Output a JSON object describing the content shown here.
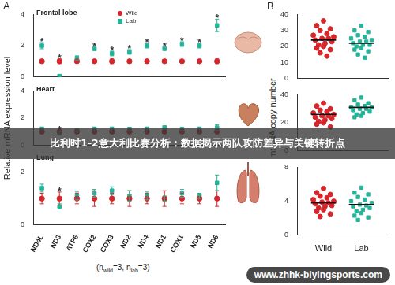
{
  "figure": {
    "panel_labels": [
      "A",
      "B"
    ],
    "ylabels": [
      "Relative mRNA expression level",
      "mtDNA copy number"
    ],
    "note": [
      {
        "text": "(n"
      },
      {
        "text": "wild",
        "sub": true
      },
      {
        "text": "=3, n"
      },
      {
        "text": "lab",
        "sub": true
      },
      {
        "text": "=3)"
      }
    ],
    "banner": "比利时1-2意大利比赛分析：数据揭示两队攻防差异与关键转折点",
    "watermark": "www.zhhk-biyingsports.com"
  },
  "chart_data": [
    {
      "type": "dot",
      "title": "Frontal lobe",
      "legend": "top",
      "grid": false,
      "tick_labels": "y",
      "categories": [
        "ND4L",
        "ND3",
        "ATP6",
        "COX2",
        "COX3",
        "ND2",
        "ND4",
        "ND1",
        "COX1",
        "ND5",
        "ND6"
      ],
      "ylim": [
        0,
        4
      ],
      "yticks": [
        0,
        2,
        4
      ],
      "series": [
        {
          "name": "Wild",
          "color": "#d7262b",
          "marker": "circle",
          "values": [
            1,
            1,
            1,
            1,
            1,
            1,
            1,
            1,
            1,
            1,
            1
          ],
          "errors": [
            0.1,
            0.15,
            0.1,
            0.1,
            0.15,
            0.1,
            0.1,
            0.1,
            0.1,
            0.1,
            0.15
          ]
        },
        {
          "name": "Lab",
          "color": "#23b49a",
          "marker": "square",
          "values": [
            2.0,
            0.05,
            1.2,
            1.8,
            1.5,
            1.6,
            2.0,
            1.8,
            2.1,
            2.0,
            3.3
          ],
          "errors": [
            0.2,
            0.05,
            0.15,
            0.1,
            0.15,
            0.15,
            0.15,
            0.1,
            0.15,
            0.15,
            0.4
          ]
        }
      ],
      "annotations": [
        {
          "text": "*",
          "category": "ND4L"
        },
        {
          "text": "*",
          "category": "ND3"
        },
        {
          "text": "*",
          "category": "COX2"
        },
        {
          "text": "*",
          "category": "COX3"
        },
        {
          "text": "*",
          "category": "ND2"
        },
        {
          "text": "*",
          "category": "ND4"
        },
        {
          "text": "*",
          "category": "ND1"
        },
        {
          "text": "*",
          "category": "COX1"
        },
        {
          "text": "*",
          "category": "ND5"
        },
        {
          "text": "*",
          "category": "ND6"
        }
      ]
    },
    {
      "type": "dot",
      "title": "Heart",
      "grid": false,
      "tick_labels": "y",
      "categories": [
        "ND4L",
        "ND3",
        "ATP6",
        "COX2",
        "COX3",
        "ND2",
        "ND4",
        "ND1",
        "COX1",
        "ND5",
        "ND6"
      ],
      "ylim": [
        0,
        4
      ],
      "yticks": [
        0,
        2,
        4
      ],
      "series": [
        {
          "name": "Wild",
          "color": "#d7262b",
          "marker": "circle",
          "values": [
            1,
            1,
            1,
            1,
            1,
            1,
            1,
            1,
            1,
            1,
            1
          ],
          "errors": [
            0.1,
            0.1,
            0.1,
            0.1,
            0.1,
            0.1,
            0.1,
            0.1,
            0.1,
            0.1,
            0.1
          ]
        },
        {
          "name": "Lab",
          "color": "#23b49a",
          "marker": "square",
          "values": [
            1.2,
            0.9,
            1.1,
            1.2,
            1.2,
            1.2,
            1.2,
            1.3,
            1.2,
            1.2,
            1.3
          ],
          "errors": [
            0.15,
            0.1,
            0.1,
            0.15,
            0.15,
            0.1,
            0.15,
            0.15,
            0.1,
            0.15,
            0.2
          ]
        }
      ],
      "annotations": [
        {
          "text": "*",
          "category": "ND3"
        }
      ]
    },
    {
      "type": "dot",
      "title": "Lung",
      "grid": false,
      "categories": [
        "ND4L",
        "ND3",
        "ATP6",
        "COX2",
        "COX3",
        "ND2",
        "ND4",
        "ND1",
        "COX1",
        "ND5",
        "ND6"
      ],
      "ylim": [
        0,
        2.5
      ],
      "yticks": [
        0,
        2
      ],
      "series": [
        {
          "name": "Wild",
          "color": "#d7262b",
          "marker": "circle",
          "values": [
            1,
            1,
            1,
            1,
            1,
            1,
            1,
            1,
            1,
            1,
            1
          ],
          "errors": [
            0.2,
            0.25,
            0.2,
            0.3,
            0.2,
            0.3,
            0.2,
            0.3,
            0.2,
            0.2,
            0.3
          ]
        },
        {
          "name": "Lab",
          "color": "#23b49a",
          "marker": "square",
          "values": [
            1.4,
            0.7,
            1.1,
            1.2,
            1.3,
            1.1,
            1.1,
            1.0,
            1.2,
            1.1,
            1.6
          ],
          "errors": [
            0.15,
            0.1,
            0.15,
            0.15,
            0.15,
            0.2,
            0.15,
            0.1,
            0.15,
            0.1,
            0.3
          ]
        }
      ],
      "annotations": [
        {
          "text": "*",
          "category": "ND3"
        }
      ]
    },
    {
      "type": "strip",
      "grid": false,
      "tick_labels": "y",
      "categories": [
        "Wild",
        "Lab"
      ],
      "ylim": [
        0,
        40
      ],
      "yticks": [
        0,
        10,
        20,
        30,
        40
      ],
      "groups": [
        {
          "category": "Wild",
          "color": "#d7262b",
          "marker": "circle",
          "mean": 24,
          "values": [
            36,
            33,
            31,
            30,
            28,
            27,
            26,
            25,
            25,
            24,
            23,
            22,
            21,
            20,
            19,
            18,
            16,
            14
          ]
        },
        {
          "category": "Lab",
          "color": "#23b49a",
          "marker": "square",
          "mean": 22,
          "values": [
            33,
            30,
            29,
            27,
            26,
            25,
            24,
            23,
            23,
            22,
            21,
            21,
            20,
            19,
            18,
            17,
            15,
            13
          ]
        }
      ]
    },
    {
      "type": "strip",
      "grid": false,
      "tick_labels": "y",
      "categories": [
        "Wild",
        "Lab"
      ],
      "ylim": [
        0,
        40
      ],
      "yticks": [
        0,
        20,
        40
      ],
      "groups": [
        {
          "category": "Wild",
          "color": "#d7262b",
          "marker": "circle",
          "mean": 26,
          "values": [
            34,
            32,
            30,
            29,
            28,
            27,
            26,
            25,
            25,
            24,
            23,
            22,
            21,
            20,
            19,
            17
          ]
        },
        {
          "category": "Lab",
          "color": "#23b49a",
          "marker": "square",
          "mean": 31,
          "values": [
            38,
            36,
            34,
            33,
            32,
            31,
            31,
            30,
            30,
            29,
            28,
            27,
            26,
            25,
            24
          ]
        }
      ]
    },
    {
      "type": "strip",
      "grid": false,
      "categories": [
        "Wild",
        "Lab"
      ],
      "ylim": [
        0,
        8
      ],
      "yticks": [
        0,
        4,
        8
      ],
      "groups": [
        {
          "category": "Wild",
          "color": "#d7262b",
          "marker": "circle",
          "mean": 3.8,
          "values": [
            5.5,
            5,
            4.8,
            4.6,
            4.4,
            4.2,
            4,
            3.9,
            3.8,
            3.7,
            3.5,
            3.4,
            3.2,
            3,
            2.8,
            2.5,
            2.2
          ]
        },
        {
          "category": "Lab",
          "color": "#23b49a",
          "marker": "square",
          "mean": 3.6,
          "values": [
            5.6,
            5,
            4.8,
            4.5,
            4.2,
            4,
            3.8,
            3.6,
            3.5,
            3.4,
            3.2,
            3,
            2.8,
            2.6,
            2.3,
            2.1,
            1.8
          ]
        }
      ]
    }
  ]
}
